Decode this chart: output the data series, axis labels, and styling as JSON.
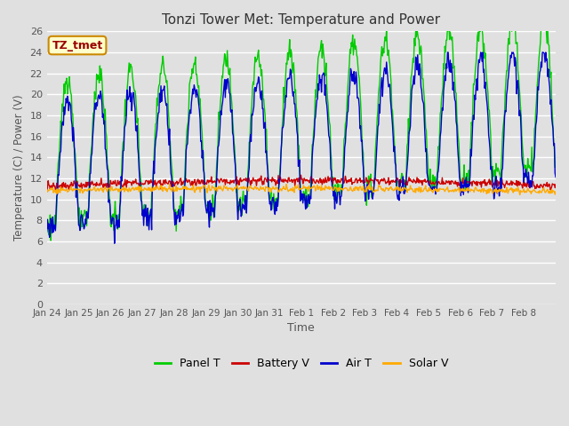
{
  "title": "Tonzi Tower Met: Temperature and Power",
  "xlabel": "Time",
  "ylabel": "Temperature (C) / Power (V)",
  "ylim": [
    0,
    26
  ],
  "yticks": [
    0,
    2,
    4,
    6,
    8,
    10,
    12,
    14,
    16,
    18,
    20,
    22,
    24,
    26
  ],
  "xtick_labels": [
    "Jan 24",
    "Jan 25",
    "Jan 26",
    "Jan 27",
    "Jan 28",
    "Jan 29",
    "Jan 30",
    "Jan 31",
    "Feb 1",
    "Feb 2",
    "Feb 3",
    "Feb 4",
    "Feb 5",
    "Feb 6",
    "Feb 7",
    "Feb 8"
  ],
  "legend_labels": [
    "Panel T",
    "Battery V",
    "Air T",
    "Solar V"
  ],
  "legend_colors": [
    "#00cc00",
    "#cc0000",
    "#0000cc",
    "#ffaa00"
  ],
  "bg_color": "#e0e0e0",
  "grid_color": "#ffffff",
  "annotation_text": "TZ_tmet",
  "annotation_bg": "#ffffcc",
  "annotation_border": "#cc8800"
}
